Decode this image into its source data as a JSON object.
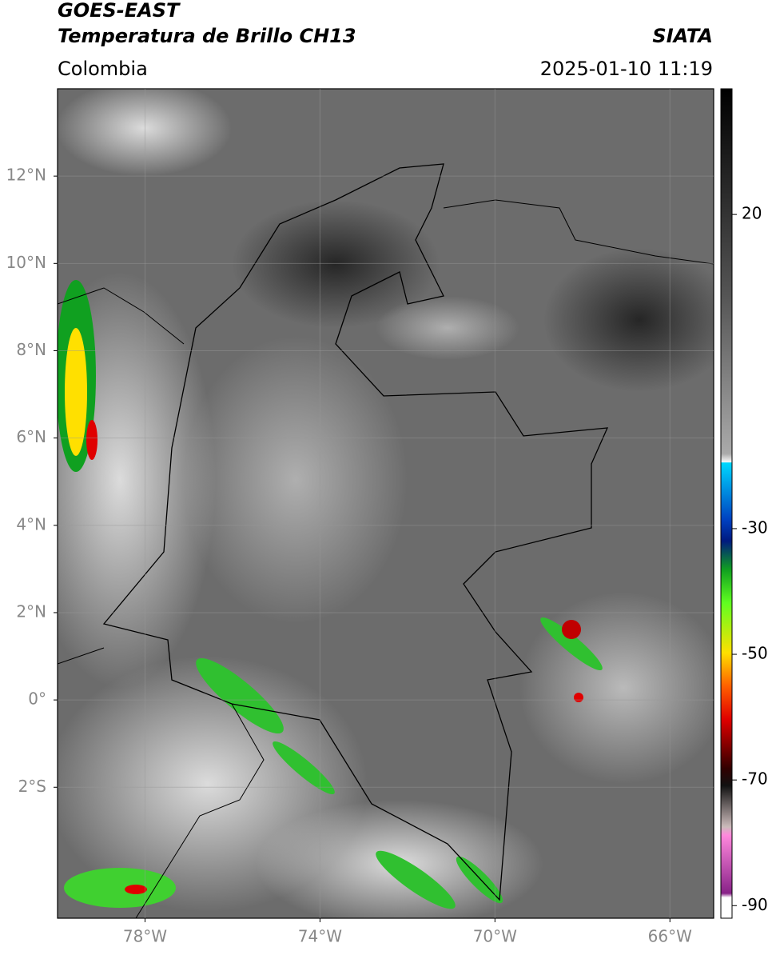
{
  "header": {
    "satellite": "GOES-EAST",
    "product": "Temperatura de Brillo CH13",
    "source": "SIATA",
    "region": "Colombia",
    "datetime": "2025-01-10 11:19"
  },
  "map": {
    "xlim": [
      -80,
      -65
    ],
    "ylim": [
      -5,
      14
    ],
    "xticks": [
      {
        "value": -78,
        "label": "78°W"
      },
      {
        "value": -74,
        "label": "74°W"
      },
      {
        "value": -70,
        "label": "70°W"
      },
      {
        "value": -66,
        "label": "66°W"
      }
    ],
    "yticks": [
      {
        "value": 12,
        "label": "12°N"
      },
      {
        "value": 10,
        "label": "10°N"
      },
      {
        "value": 8,
        "label": "8°N"
      },
      {
        "value": 6,
        "label": "6°N"
      },
      {
        "value": 4,
        "label": "4°N"
      },
      {
        "value": 2,
        "label": "2°N"
      },
      {
        "value": 0,
        "label": "0°"
      },
      {
        "value": -2,
        "label": "2°S"
      }
    ],
    "grid": true
  },
  "colorbar": {
    "lim": [
      -92,
      40
    ],
    "ticks": [
      20,
      -30,
      -50,
      -70,
      -90
    ]
  }
}
